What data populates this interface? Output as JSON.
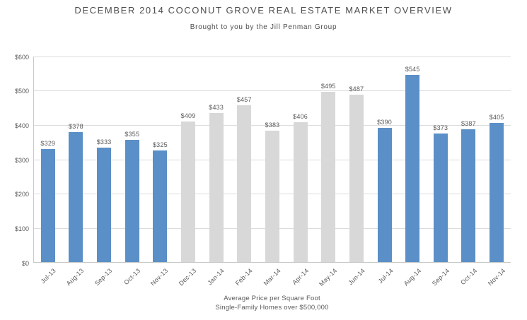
{
  "chart_data": {
    "type": "bar",
    "title": "DECEMBER 2014 COCONUT GROVE REAL ESTATE MARKET OVERVIEW",
    "subtitle": "Brought to you by the Jill Penman Group",
    "categories": [
      "Jul-13",
      "Aug-13",
      "Sep-13",
      "Oct-13",
      "Nov-13",
      "Dec-13",
      "Jan-14",
      "Feb-14",
      "Mar-14",
      "Apr-14",
      "May-14",
      "Jun-14",
      "Jul-14",
      "Aug-14",
      "Sep-14",
      "Oct-14",
      "Nov-14"
    ],
    "values": [
      329,
      378,
      333,
      355,
      325,
      409,
      433,
      457,
      383,
      406,
      495,
      487,
      390,
      545,
      373,
      387,
      405
    ],
    "data_labels": [
      "$329",
      "$378",
      "$333",
      "$355",
      "$325",
      "$409",
      "$433",
      "$457",
      "$383",
      "$406",
      "$495",
      "$487",
      "$390",
      "$545",
      "$373",
      "$387",
      "$405"
    ],
    "bar_colors": [
      "#5b8fc7",
      "#5b8fc7",
      "#5b8fc7",
      "#5b8fc7",
      "#5b8fc7",
      "#d8d8d8",
      "#d8d8d8",
      "#d8d8d8",
      "#d8d8d8",
      "#d8d8d8",
      "#d8d8d8",
      "#d8d8d8",
      "#5b8fc7",
      "#5b8fc7",
      "#5b8fc7",
      "#5b8fc7",
      "#5b8fc7"
    ],
    "accent_color": "#5b8fc7",
    "muted_color": "#d8d8d8",
    "xlabel_line1": "Average Price per Square Foot",
    "xlabel_line2": "Single-Family Homes over $500,000",
    "ylabel": "",
    "ylim": [
      0,
      600
    ],
    "ytick_step": 100,
    "ytick_labels": [
      "$0",
      "$100",
      "$200",
      "$300",
      "$400",
      "$500",
      "$600"
    ],
    "grid": true,
    "legend": "none"
  }
}
